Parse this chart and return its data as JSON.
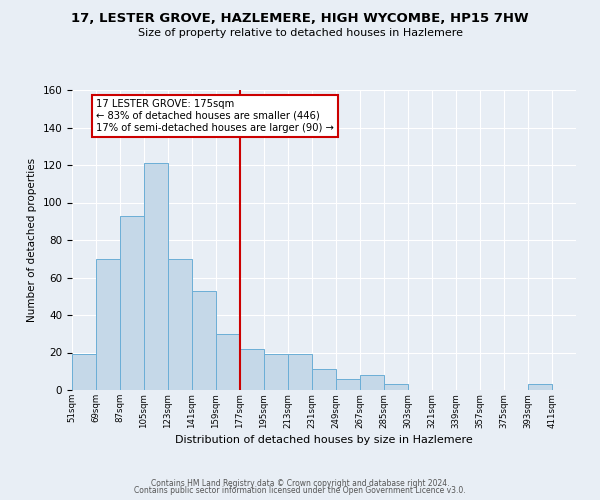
{
  "title": "17, LESTER GROVE, HAZLEMERE, HIGH WYCOMBE, HP15 7HW",
  "subtitle": "Size of property relative to detached houses in Hazlemere",
  "xlabel": "Distribution of detached houses by size in Hazlemere",
  "ylabel": "Number of detached properties",
  "bin_labels": [
    "51sqm",
    "69sqm",
    "87sqm",
    "105sqm",
    "123sqm",
    "141sqm",
    "159sqm",
    "177sqm",
    "195sqm",
    "213sqm",
    "231sqm",
    "249sqm",
    "267sqm",
    "285sqm",
    "303sqm",
    "321sqm",
    "339sqm",
    "357sqm",
    "375sqm",
    "393sqm",
    "411sqm"
  ],
  "bar_heights": [
    19,
    70,
    93,
    121,
    70,
    53,
    30,
    22,
    19,
    19,
    11,
    6,
    8,
    3,
    0,
    0,
    0,
    0,
    0,
    3,
    0
  ],
  "bin_edges": [
    51,
    69,
    87,
    105,
    123,
    141,
    159,
    177,
    195,
    213,
    231,
    249,
    267,
    285,
    303,
    321,
    339,
    357,
    375,
    393,
    411,
    429
  ],
  "bar_color": "#c5d8e8",
  "bar_edge_color": "#6baed6",
  "vline_x": 177,
  "vline_color": "#cc0000",
  "annotation_line1": "17 LESTER GROVE: 175sqm",
  "annotation_line2": "← 83% of detached houses are smaller (446)",
  "annotation_line3": "17% of semi-detached houses are larger (90) →",
  "annotation_box_color": "#ffffff",
  "annotation_box_edge": "#cc0000",
  "ylim": [
    0,
    160
  ],
  "yticks": [
    0,
    20,
    40,
    60,
    80,
    100,
    120,
    140,
    160
  ],
  "background_color": "#e8eef5",
  "footer_line1": "Contains HM Land Registry data © Crown copyright and database right 2024.",
  "footer_line2": "Contains public sector information licensed under the Open Government Licence v3.0."
}
